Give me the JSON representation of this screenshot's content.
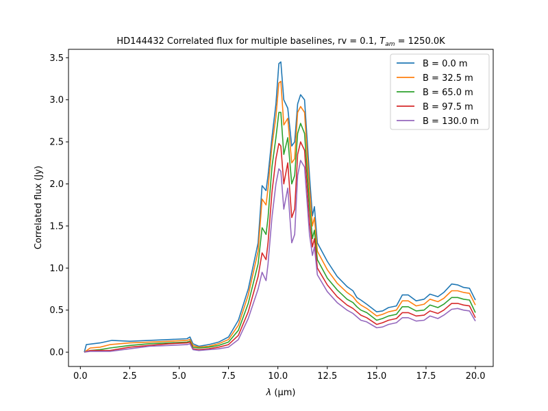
{
  "chart_data": {
    "type": "line",
    "title": "HD144432 Correlated flux for multiple baselines, rv = 0.1, ",
    "title_math_var": "T",
    "title_math_sub": "am",
    "title_suffix": " = 1250.0K",
    "xlabel_var": "λ",
    "xlabel_unit": " (μm)",
    "ylabel": "Correlated flux (Jy)",
    "xlim": [
      -0.6,
      20.9
    ],
    "ylim": [
      -0.17,
      3.6
    ],
    "xticks": [
      0.0,
      2.5,
      5.0,
      7.5,
      10.0,
      12.5,
      15.0,
      17.5,
      20.0
    ],
    "xtick_labels": [
      "0.0",
      "2.5",
      "5.0",
      "7.5",
      "10.0",
      "12.5",
      "15.0",
      "17.5",
      "20.0"
    ],
    "yticks": [
      0.0,
      0.5,
      1.0,
      1.5,
      2.0,
      2.5,
      3.0,
      3.5
    ],
    "ytick_labels": [
      "0.0",
      "0.5",
      "1.0",
      "1.5",
      "2.0",
      "2.5",
      "3.0",
      "3.5"
    ],
    "grid": false,
    "legend_position": "top-right",
    "series": [
      {
        "name": "B = 0.0 m",
        "color": "#1f77b4",
        "x": [
          0.2,
          0.3,
          1.0,
          1.6,
          2.5,
          3.5,
          4.5,
          5.4,
          5.55,
          5.7,
          6.0,
          6.5,
          7.0,
          7.5,
          8.0,
          8.5,
          9.0,
          9.2,
          9.4,
          9.5,
          9.7,
          9.9,
          10.05,
          10.15,
          10.3,
          10.5,
          10.7,
          10.85,
          11.0,
          11.15,
          11.35,
          11.6,
          11.75,
          11.85,
          12.0,
          12.5,
          13.0,
          13.5,
          13.8,
          14.0,
          14.2,
          14.5,
          15.0,
          15.3,
          15.6,
          16.0,
          16.3,
          16.6,
          17.0,
          17.4,
          17.7,
          18.1,
          18.4,
          18.8,
          19.1,
          19.4,
          19.7,
          20.0
        ],
        "y": [
          0.0,
          0.09,
          0.11,
          0.14,
          0.13,
          0.14,
          0.15,
          0.16,
          0.18,
          0.1,
          0.07,
          0.09,
          0.12,
          0.18,
          0.38,
          0.75,
          1.3,
          1.98,
          1.92,
          2.1,
          2.55,
          2.95,
          3.43,
          3.45,
          3.0,
          2.9,
          2.45,
          2.5,
          2.95,
          3.06,
          3.0,
          2.1,
          1.62,
          1.73,
          1.3,
          1.08,
          0.9,
          0.78,
          0.73,
          0.65,
          0.62,
          0.57,
          0.48,
          0.49,
          0.53,
          0.55,
          0.68,
          0.68,
          0.61,
          0.63,
          0.69,
          0.66,
          0.71,
          0.81,
          0.8,
          0.77,
          0.76,
          0.62
        ]
      },
      {
        "name": "B = 32.5 m",
        "color": "#ff7f0e",
        "x": [
          0.2,
          0.5,
          1.0,
          1.5,
          2.5,
          3.5,
          4.5,
          5.4,
          5.55,
          5.7,
          6.0,
          6.5,
          7.0,
          7.5,
          8.0,
          8.5,
          9.0,
          9.2,
          9.4,
          9.5,
          9.7,
          9.9,
          10.05,
          10.15,
          10.3,
          10.5,
          10.7,
          10.85,
          11.0,
          11.15,
          11.35,
          11.6,
          11.75,
          11.85,
          12.0,
          12.5,
          13.0,
          13.5,
          13.8,
          14.0,
          14.2,
          14.5,
          15.0,
          15.3,
          15.6,
          16.0,
          16.3,
          16.6,
          17.0,
          17.4,
          17.7,
          18.1,
          18.4,
          18.8,
          19.1,
          19.4,
          19.7,
          20.0
        ],
        "y": [
          0.0,
          0.05,
          0.06,
          0.09,
          0.11,
          0.12,
          0.13,
          0.14,
          0.15,
          0.08,
          0.06,
          0.07,
          0.1,
          0.15,
          0.32,
          0.68,
          1.2,
          1.82,
          1.75,
          1.95,
          2.45,
          2.8,
          3.2,
          3.22,
          2.7,
          2.78,
          2.25,
          2.3,
          2.85,
          2.92,
          2.85,
          1.95,
          1.5,
          1.6,
          1.2,
          0.98,
          0.82,
          0.71,
          0.66,
          0.6,
          0.56,
          0.52,
          0.43,
          0.45,
          0.48,
          0.5,
          0.61,
          0.61,
          0.55,
          0.57,
          0.63,
          0.6,
          0.64,
          0.73,
          0.73,
          0.71,
          0.7,
          0.56
        ]
      },
      {
        "name": "B = 65.0 m",
        "color": "#2ca02c",
        "x": [
          0.2,
          0.5,
          1.0,
          1.5,
          2.5,
          3.5,
          4.5,
          5.4,
          5.55,
          5.7,
          6.0,
          6.5,
          7.0,
          7.5,
          8.0,
          8.5,
          9.0,
          9.2,
          9.4,
          9.5,
          9.7,
          9.9,
          10.05,
          10.15,
          10.3,
          10.5,
          10.7,
          10.85,
          11.0,
          11.15,
          11.35,
          11.6,
          11.75,
          11.85,
          12.0,
          12.5,
          13.0,
          13.5,
          13.8,
          14.0,
          14.2,
          14.5,
          15.0,
          15.3,
          15.6,
          16.0,
          16.3,
          16.6,
          17.0,
          17.4,
          17.7,
          18.1,
          18.4,
          18.8,
          19.1,
          19.4,
          19.7,
          20.0
        ],
        "y": [
          0.0,
          0.02,
          0.03,
          0.05,
          0.08,
          0.1,
          0.11,
          0.12,
          0.13,
          0.06,
          0.05,
          0.06,
          0.08,
          0.12,
          0.26,
          0.58,
          1.05,
          1.48,
          1.4,
          1.6,
          2.2,
          2.55,
          2.85,
          2.85,
          2.35,
          2.55,
          2.0,
          2.1,
          2.6,
          2.72,
          2.6,
          1.75,
          1.35,
          1.45,
          1.1,
          0.88,
          0.74,
          0.63,
          0.59,
          0.54,
          0.5,
          0.47,
          0.38,
          0.4,
          0.43,
          0.45,
          0.54,
          0.54,
          0.49,
          0.5,
          0.56,
          0.53,
          0.57,
          0.65,
          0.65,
          0.63,
          0.62,
          0.47
        ]
      },
      {
        "name": "B = 97.5 m",
        "color": "#d62728",
        "x": [
          0.2,
          0.5,
          1.0,
          1.5,
          2.5,
          3.5,
          4.5,
          5.4,
          5.55,
          5.7,
          6.0,
          6.5,
          7.0,
          7.5,
          8.0,
          8.5,
          9.0,
          9.2,
          9.4,
          9.5,
          9.7,
          9.9,
          10.05,
          10.15,
          10.3,
          10.5,
          10.7,
          10.85,
          11.0,
          11.15,
          11.35,
          11.6,
          11.75,
          11.85,
          12.0,
          12.5,
          13.0,
          13.5,
          13.8,
          14.0,
          14.2,
          14.5,
          15.0,
          15.3,
          15.6,
          16.0,
          16.3,
          16.6,
          17.0,
          17.4,
          17.7,
          18.1,
          18.4,
          18.8,
          19.1,
          19.4,
          19.7,
          20.0
        ],
        "y": [
          0.0,
          0.02,
          0.02,
          0.02,
          0.06,
          0.08,
          0.1,
          0.11,
          0.12,
          0.04,
          0.03,
          0.04,
          0.06,
          0.09,
          0.2,
          0.48,
          0.9,
          1.18,
          1.1,
          1.3,
          1.9,
          2.3,
          2.48,
          2.45,
          2.0,
          2.25,
          1.6,
          1.7,
          2.35,
          2.5,
          2.4,
          1.55,
          1.25,
          1.35,
          1.0,
          0.8,
          0.66,
          0.56,
          0.52,
          0.48,
          0.44,
          0.41,
          0.33,
          0.35,
          0.38,
          0.4,
          0.47,
          0.47,
          0.43,
          0.44,
          0.49,
          0.46,
          0.5,
          0.58,
          0.58,
          0.56,
          0.55,
          0.41
        ]
      },
      {
        "name": "B = 130.0 m",
        "color": "#9467bd",
        "x": [
          0.2,
          0.5,
          1.0,
          1.5,
          2.5,
          3.5,
          4.5,
          5.4,
          5.55,
          5.7,
          6.0,
          6.5,
          7.0,
          7.5,
          8.0,
          8.5,
          9.0,
          9.2,
          9.4,
          9.5,
          9.7,
          9.9,
          10.05,
          10.15,
          10.3,
          10.5,
          10.7,
          10.85,
          11.0,
          11.15,
          11.35,
          11.6,
          11.75,
          11.85,
          12.0,
          12.5,
          13.0,
          13.5,
          13.8,
          14.0,
          14.2,
          14.5,
          15.0,
          15.3,
          15.6,
          16.0,
          16.3,
          16.6,
          17.0,
          17.4,
          17.7,
          18.1,
          18.4,
          18.8,
          19.1,
          19.4,
          19.7,
          20.0
        ],
        "y": [
          0.0,
          0.01,
          0.01,
          0.01,
          0.04,
          0.07,
          0.08,
          0.09,
          0.1,
          0.03,
          0.02,
          0.03,
          0.04,
          0.06,
          0.15,
          0.4,
          0.75,
          0.95,
          0.85,
          1.05,
          1.6,
          2.0,
          2.18,
          2.15,
          1.7,
          1.95,
          1.3,
          1.4,
          2.1,
          2.28,
          2.2,
          1.4,
          1.15,
          1.25,
          0.92,
          0.72,
          0.59,
          0.5,
          0.46,
          0.42,
          0.38,
          0.36,
          0.29,
          0.3,
          0.33,
          0.35,
          0.41,
          0.41,
          0.37,
          0.38,
          0.43,
          0.4,
          0.44,
          0.51,
          0.52,
          0.5,
          0.49,
          0.37
        ]
      }
    ]
  }
}
